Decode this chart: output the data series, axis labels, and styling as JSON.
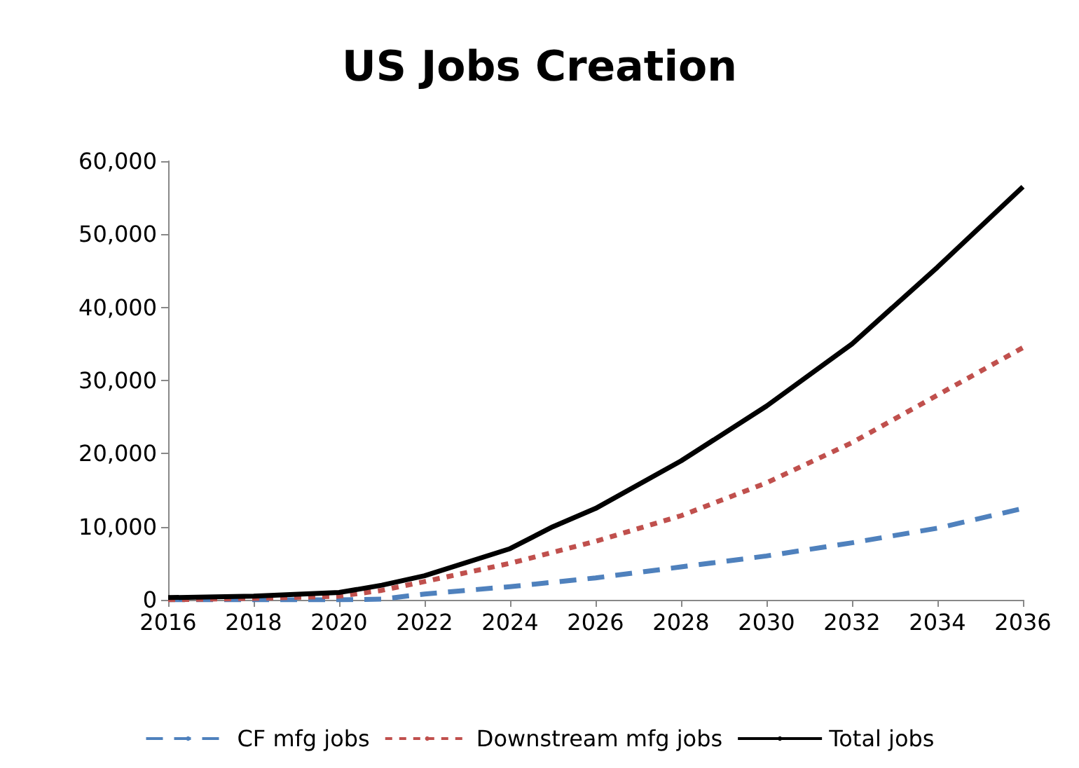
{
  "chart_data": {
    "type": "line",
    "title": "US Jobs Creation",
    "x": [
      2016,
      2018,
      2020,
      2021,
      2022,
      2024,
      2025,
      2026,
      2028,
      2030,
      2032,
      2034,
      2036
    ],
    "series": [
      {
        "name": "CF mfg jobs",
        "color": "#4f81bd",
        "line_style": "dashed",
        "values": [
          0,
          0,
          0,
          100,
          800,
          1800,
          2400,
          3000,
          4500,
          6000,
          7800,
          9800,
          12500
        ]
      },
      {
        "name": "Downstream mfg jobs",
        "color": "#c0504d",
        "line_style": "dotted",
        "values": [
          0,
          200,
          500,
          1300,
          2500,
          5000,
          6500,
          8000,
          11500,
          16000,
          21500,
          28000,
          34500
        ]
      },
      {
        "name": "Total jobs",
        "color": "#000000",
        "line_style": "solid",
        "values": [
          300,
          500,
          1000,
          2000,
          3300,
          7000,
          10000,
          12500,
          19000,
          26500,
          35000,
          45500,
          56500
        ]
      }
    ],
    "xlim": [
      2016,
      2036
    ],
    "xticks": [
      2016,
      2018,
      2020,
      2022,
      2024,
      2026,
      2028,
      2030,
      2032,
      2034,
      2036
    ],
    "ylim": [
      0,
      60000
    ],
    "yticks": [
      0,
      {
        "value": 10000,
        "label": "10,000"
      },
      {
        "value": 20000,
        "label": "20,000"
      },
      {
        "value": 30000,
        "label": "30,000"
      },
      {
        "value": 40000,
        "label": "40,000"
      },
      {
        "value": 50000,
        "label": "50,000"
      },
      {
        "value": 60000,
        "label": "60,000"
      }
    ],
    "grid": false,
    "legend": "bottom",
    "marker": "none"
  }
}
